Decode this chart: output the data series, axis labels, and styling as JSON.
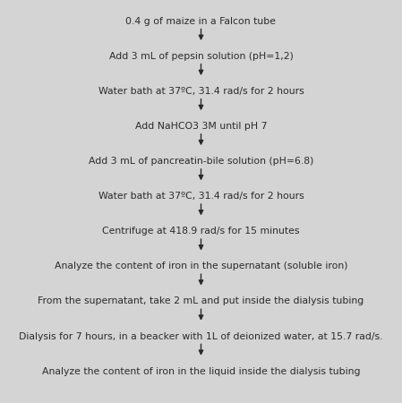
{
  "background_color": "#d4d4d4",
  "steps": [
    "0.4 g of maize in a Falcon tube",
    "Add 3 mL of pepsin solution (pH=1,2)",
    "Water bath at 37ºC, 31.4 rad/s for 2 hours",
    "Add NaHCO3 3M until pH 7",
    "Add 3 mL of pancreatin-bile solution (pH=6.8)",
    "Water bath at 37ºC, 31.4 rad/s for 2 hours",
    "Centrifuge at 418.9 rad/s for 15 minutes",
    "Analyze the content of iron in the supernatant (soluble iron)",
    "From the supernatant, take 2 mL and put inside the dialysis tubing",
    "Dialysis for 7 hours, in a beacker with 1L of deionized water, at 15.7 rad/s.",
    "Analyze the content of iron in the liquid inside the dialysis tubing"
  ],
  "text_color": "#2a2a2a",
  "arrow_color": "#2a2a2a",
  "font_size": 7.8,
  "figsize": [
    4.49,
    4.5
  ],
  "dpi": 100
}
